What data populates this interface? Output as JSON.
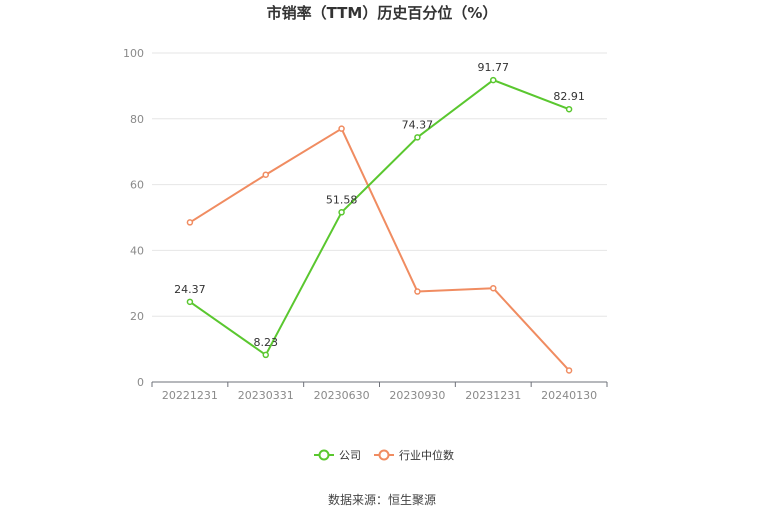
{
  "chart_data": {
    "type": "line",
    "title": "市销率（TTM）历史百分位（%）",
    "categories": [
      "20221231",
      "20230331",
      "20230630",
      "20230930",
      "20231231",
      "20240130"
    ],
    "ylim": [
      0,
      100
    ],
    "yticks": [
      0,
      20,
      40,
      60,
      80,
      100
    ],
    "grid": true,
    "legend_position": "bottom",
    "series": [
      {
        "name": "公司",
        "color": "#5ac72f",
        "values": [
          24.37,
          8.23,
          51.58,
          74.37,
          91.77,
          82.91
        ],
        "labels": [
          "24.37",
          "8.23",
          "51.58",
          "74.37",
          "91.77",
          "82.91"
        ]
      },
      {
        "name": "行业中位数",
        "color": "#f08c61",
        "values": [
          48.5,
          63,
          77,
          27.5,
          28.5,
          3.5
        ]
      }
    ]
  },
  "source": "数据来源：恒生聚源"
}
